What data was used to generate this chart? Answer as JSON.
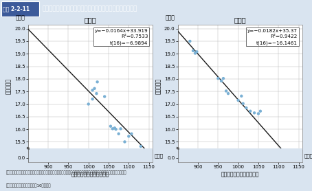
{
  "title_label": "図表 2-2-11",
  "title_main": "男女別　パートタイム労働者の時給と実労働日数の相関関係",
  "title_box_color": "#3c5a9a",
  "title_text_color": "#ffffff",
  "bg_color": "#d9e4f0",
  "plot_bg_color": "#ffffff",
  "dot_color": "#7ab0d4",
  "line_color": "#1a1a1a",
  "male_title": "男　性",
  "female_title": "女　性",
  "ylabel": "実労働日数",
  "xlabel": "１時間当たり所定内給与額",
  "yunit": "（日）",
  "xunit": "（円）",
  "ylim_data": [
    15.3,
    20.1
  ],
  "xlim": [
    850,
    1160
  ],
  "yticks_main": [
    15.5,
    16.0,
    16.5,
    17.0,
    17.5,
    18.0,
    18.5,
    19.0,
    19.5,
    20.0
  ],
  "ytick_zero": 0.0,
  "xticks": [
    900,
    950,
    1000,
    1050,
    1100,
    1150
  ],
  "male_eq": "y=−0.0164x+33.919",
  "male_r2": "R²=0.7533",
  "male_t": "t(16)=−6.9894",
  "female_eq": "y=−0.0182x+35.37",
  "female_r2": "R²=0.9422",
  "female_t": "t(16)=−16.1461",
  "male_slope": -0.0164,
  "male_intercept": 33.919,
  "female_slope": -0.0182,
  "female_intercept": 35.37,
  "male_x": [
    1000,
    1010,
    1010,
    1015,
    1020,
    1022,
    1040,
    1055,
    1060,
    1065,
    1068,
    1075,
    1080,
    1090,
    1100,
    1107,
    1130
  ],
  "male_y": [
    17.0,
    17.2,
    17.55,
    17.62,
    17.42,
    17.88,
    17.3,
    16.12,
    16.02,
    16.05,
    16.0,
    15.82,
    16.02,
    15.5,
    15.72,
    15.82,
    15.32
  ],
  "female_x": [
    880,
    888,
    893,
    897,
    950,
    958,
    963,
    970,
    975,
    1000,
    1008,
    1012,
    1020,
    1030,
    1040,
    1050,
    1055
  ],
  "female_y": [
    19.5,
    19.12,
    19.02,
    19.08,
    18.02,
    17.92,
    18.02,
    17.52,
    17.42,
    17.15,
    17.32,
    17.02,
    16.85,
    16.72,
    16.65,
    16.62,
    16.72
  ],
  "source_text": "資料：厚生労働省政策統括官付賃金福祉統計室「賃金構造基本統計調査」より厚生労働省政策統括官付政策評価官室作成",
  "note_text": "（注）　調査産業計、企業規模10人以上。"
}
